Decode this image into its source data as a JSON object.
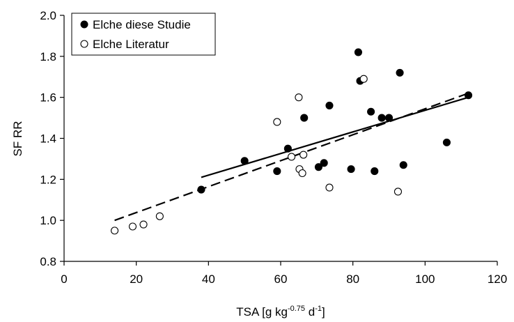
{
  "chart_data": {
    "type": "scatter",
    "xlabel_main": "TSA [g kg",
    "xlabel_sup1": "-0.75",
    "xlabel_mid": " d",
    "xlabel_sup2": "-1",
    "xlabel_end": "]",
    "ylabel": "SF RR",
    "xlim": [
      0,
      120
    ],
    "ylim": [
      0.8,
      2.0
    ],
    "x_ticks": [
      "0",
      "20",
      "40",
      "60",
      "80",
      "100",
      "120"
    ],
    "y_ticks": [
      "0.8",
      "1.0",
      "1.2",
      "1.4",
      "1.6",
      "1.8",
      "2.0"
    ],
    "grid": false,
    "legend_position": "top-left",
    "series": [
      {
        "name": "Elche diese Studie",
        "marker": "filled-circle",
        "points": [
          [
            38,
            1.15
          ],
          [
            50,
            1.29
          ],
          [
            59,
            1.24
          ],
          [
            62,
            1.35
          ],
          [
            66.5,
            1.5
          ],
          [
            70.5,
            1.26
          ],
          [
            72,
            1.28
          ],
          [
            73.5,
            1.56
          ],
          [
            79.5,
            1.25
          ],
          [
            81.5,
            1.82
          ],
          [
            82,
            1.68
          ],
          [
            85,
            1.53
          ],
          [
            86,
            1.24
          ],
          [
            88,
            1.5
          ],
          [
            90,
            1.5
          ],
          [
            93,
            1.72
          ],
          [
            94,
            1.27
          ],
          [
            106,
            1.38
          ],
          [
            112,
            1.61
          ]
        ],
        "trend": {
          "style": "solid",
          "x": [
            38,
            112
          ],
          "y": [
            1.21,
            1.6
          ]
        }
      },
      {
        "name": "Elche Literatur",
        "marker": "open-circle",
        "points": [
          [
            14,
            0.95
          ],
          [
            19,
            0.97
          ],
          [
            22,
            0.98
          ],
          [
            26.5,
            1.02
          ],
          [
            59,
            1.48
          ],
          [
            63,
            1.31
          ],
          [
            65,
            1.6
          ],
          [
            65.2,
            1.25
          ],
          [
            66,
            1.23
          ],
          [
            66.3,
            1.32
          ],
          [
            73.5,
            1.16
          ],
          [
            83,
            1.69
          ],
          [
            92.5,
            1.14
          ]
        ],
        "trend": {
          "style": "dashed",
          "x": [
            14,
            112
          ],
          "y": [
            1.0,
            1.62
          ]
        }
      }
    ]
  }
}
